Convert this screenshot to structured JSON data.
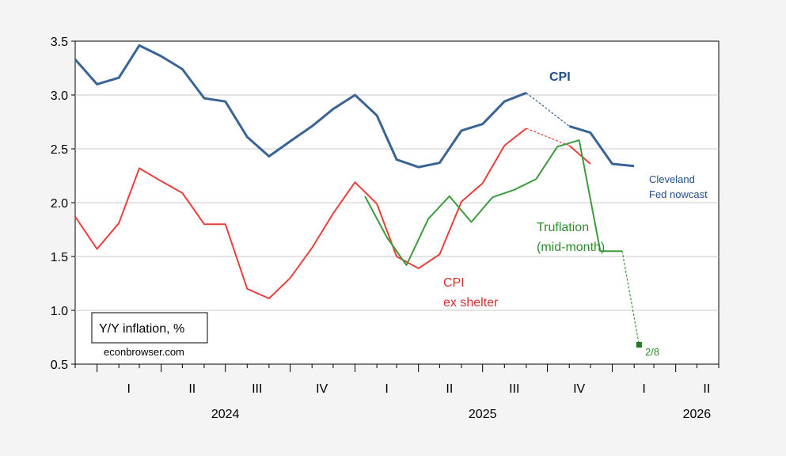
{
  "chart_data": {
    "type": "line",
    "ylim": [
      0.5,
      3.5
    ],
    "yticks": [
      0.5,
      1.0,
      1.5,
      2.0,
      2.5,
      3.0,
      3.5
    ],
    "ytick_labels": [
      "0.5",
      "1.0",
      "1.5",
      "2.0",
      "2.5",
      "3.0",
      "3.5"
    ],
    "x_start": "2023-12-01",
    "x_end": "2026-06-01",
    "quarter_labels": [
      {
        "date": "2024-02-15",
        "label": "I"
      },
      {
        "date": "2024-05-15",
        "label": "II"
      },
      {
        "date": "2024-08-15",
        "label": "III"
      },
      {
        "date": "2024-11-15",
        "label": "IV"
      },
      {
        "date": "2025-02-15",
        "label": "I"
      },
      {
        "date": "2025-05-15",
        "label": "II"
      },
      {
        "date": "2025-08-15",
        "label": "III"
      },
      {
        "date": "2025-11-15",
        "label": "IV"
      },
      {
        "date": "2026-02-15",
        "label": "I"
      },
      {
        "date": "2026-05-15",
        "label": "II"
      }
    ],
    "year_labels": [
      {
        "date": "2024-07-01",
        "label": "2024"
      },
      {
        "date": "2025-07-01",
        "label": "2025"
      },
      {
        "date": "2026-05-01",
        "label": "2026"
      }
    ],
    "grid": "horizontal",
    "series": [
      {
        "name": "CPI",
        "color": "#3a6496",
        "x": [
          "2023-12-01",
          "2024-01-01",
          "2024-02-01",
          "2024-03-01",
          "2024-04-01",
          "2024-05-01",
          "2024-06-01",
          "2024-07-01",
          "2024-08-01",
          "2024-09-01",
          "2024-10-01",
          "2024-11-01",
          "2024-12-01",
          "2025-01-01",
          "2025-02-01",
          "2025-03-01",
          "2025-04-01",
          "2025-05-01",
          "2025-06-01",
          "2025-07-01",
          "2025-08-01",
          "2025-09-01"
        ],
        "values": [
          3.33,
          3.1,
          3.16,
          3.46,
          3.36,
          3.24,
          2.97,
          2.94,
          2.61,
          2.43,
          2.57,
          2.71,
          2.87,
          3.0,
          2.81,
          2.4,
          2.33,
          2.37,
          2.67,
          2.73,
          2.94,
          3.02
        ]
      },
      {
        "name": "CPI",
        "color": "#3a6496",
        "x": [
          "2025-11-01",
          "2025-12-01",
          "2026-01-01",
          "2026-02-01"
        ],
        "values": [
          2.71,
          2.65,
          2.36,
          2.34
        ]
      },
      {
        "name": "CPI ex shelter",
        "color": "#e8403c",
        "x": [
          "2023-12-01",
          "2024-01-01",
          "2024-02-01",
          "2024-03-01",
          "2024-04-01",
          "2024-05-01",
          "2024-06-01",
          "2024-07-01",
          "2024-08-01",
          "2024-09-01",
          "2024-10-01",
          "2024-11-01",
          "2024-12-01",
          "2025-01-01",
          "2025-02-01",
          "2025-03-01",
          "2025-04-01",
          "2025-05-01",
          "2025-06-01",
          "2025-07-01",
          "2025-08-01",
          "2025-09-01"
        ],
        "values": [
          1.87,
          1.57,
          1.81,
          2.32,
          2.2,
          2.09,
          1.8,
          1.8,
          1.2,
          1.11,
          1.3,
          1.58,
          1.9,
          2.19,
          1.99,
          1.5,
          1.39,
          1.52,
          2.01,
          2.18,
          2.53,
          2.69
        ]
      },
      {
        "name": "CPI ex shelter",
        "color": "#e8403c",
        "x": [
          "2025-11-01",
          "2025-12-01"
        ],
        "values": [
          2.53,
          2.36
        ]
      },
      {
        "name": "Truflation (mid-month)",
        "color": "#3e9a3e",
        "x": [
          "2025-01-15",
          "2025-02-15",
          "2025-03-15",
          "2025-04-15",
          "2025-05-15",
          "2025-06-15",
          "2025-07-15",
          "2025-08-15",
          "2025-09-15",
          "2025-10-15",
          "2025-11-15",
          "2025-12-15",
          "2026-01-15"
        ],
        "values": [
          2.06,
          1.68,
          1.42,
          1.85,
          2.06,
          1.82,
          2.05,
          2.12,
          2.22,
          2.52,
          2.58,
          1.55,
          1.55
        ]
      }
    ],
    "connectors": [
      {
        "color": "#3a6496",
        "from": [
          "2025-09-01",
          3.02
        ],
        "to": [
          "2025-11-01",
          2.71
        ]
      },
      {
        "color": "#e8403c",
        "from": [
          "2025-09-01",
          2.69
        ],
        "to": [
          "2025-11-01",
          2.53
        ]
      },
      {
        "color": "#3e9a3e",
        "from": [
          "2026-01-15",
          1.55
        ],
        "to": [
          "2026-02-08",
          0.68
        ]
      }
    ],
    "markers": [
      {
        "color": "#1e7a1e",
        "x": "2026-02-08",
        "y": 0.68
      }
    ],
    "annotations": {
      "cpi": "CPI",
      "cpi_ex_line1": "CPI",
      "cpi_ex_line2": "ex shelter",
      "truflation_line1": "Truflation",
      "truflation_line2": "(mid-month)",
      "cleveland_line1": "Cleveland",
      "cleveland_line2": "Fed nowcast",
      "point_label": "2/8",
      "legend_box": "Y/Y inflation, %",
      "source": "econbrowser.com"
    },
    "colors": {
      "cpi_label": "#1f4e8c",
      "cpi_ex_label": "#d32f2f",
      "truflation_label": "#2e8b2e",
      "cleveland_label": "#1f4e8c",
      "point_label": "#2e8b2e"
    }
  }
}
